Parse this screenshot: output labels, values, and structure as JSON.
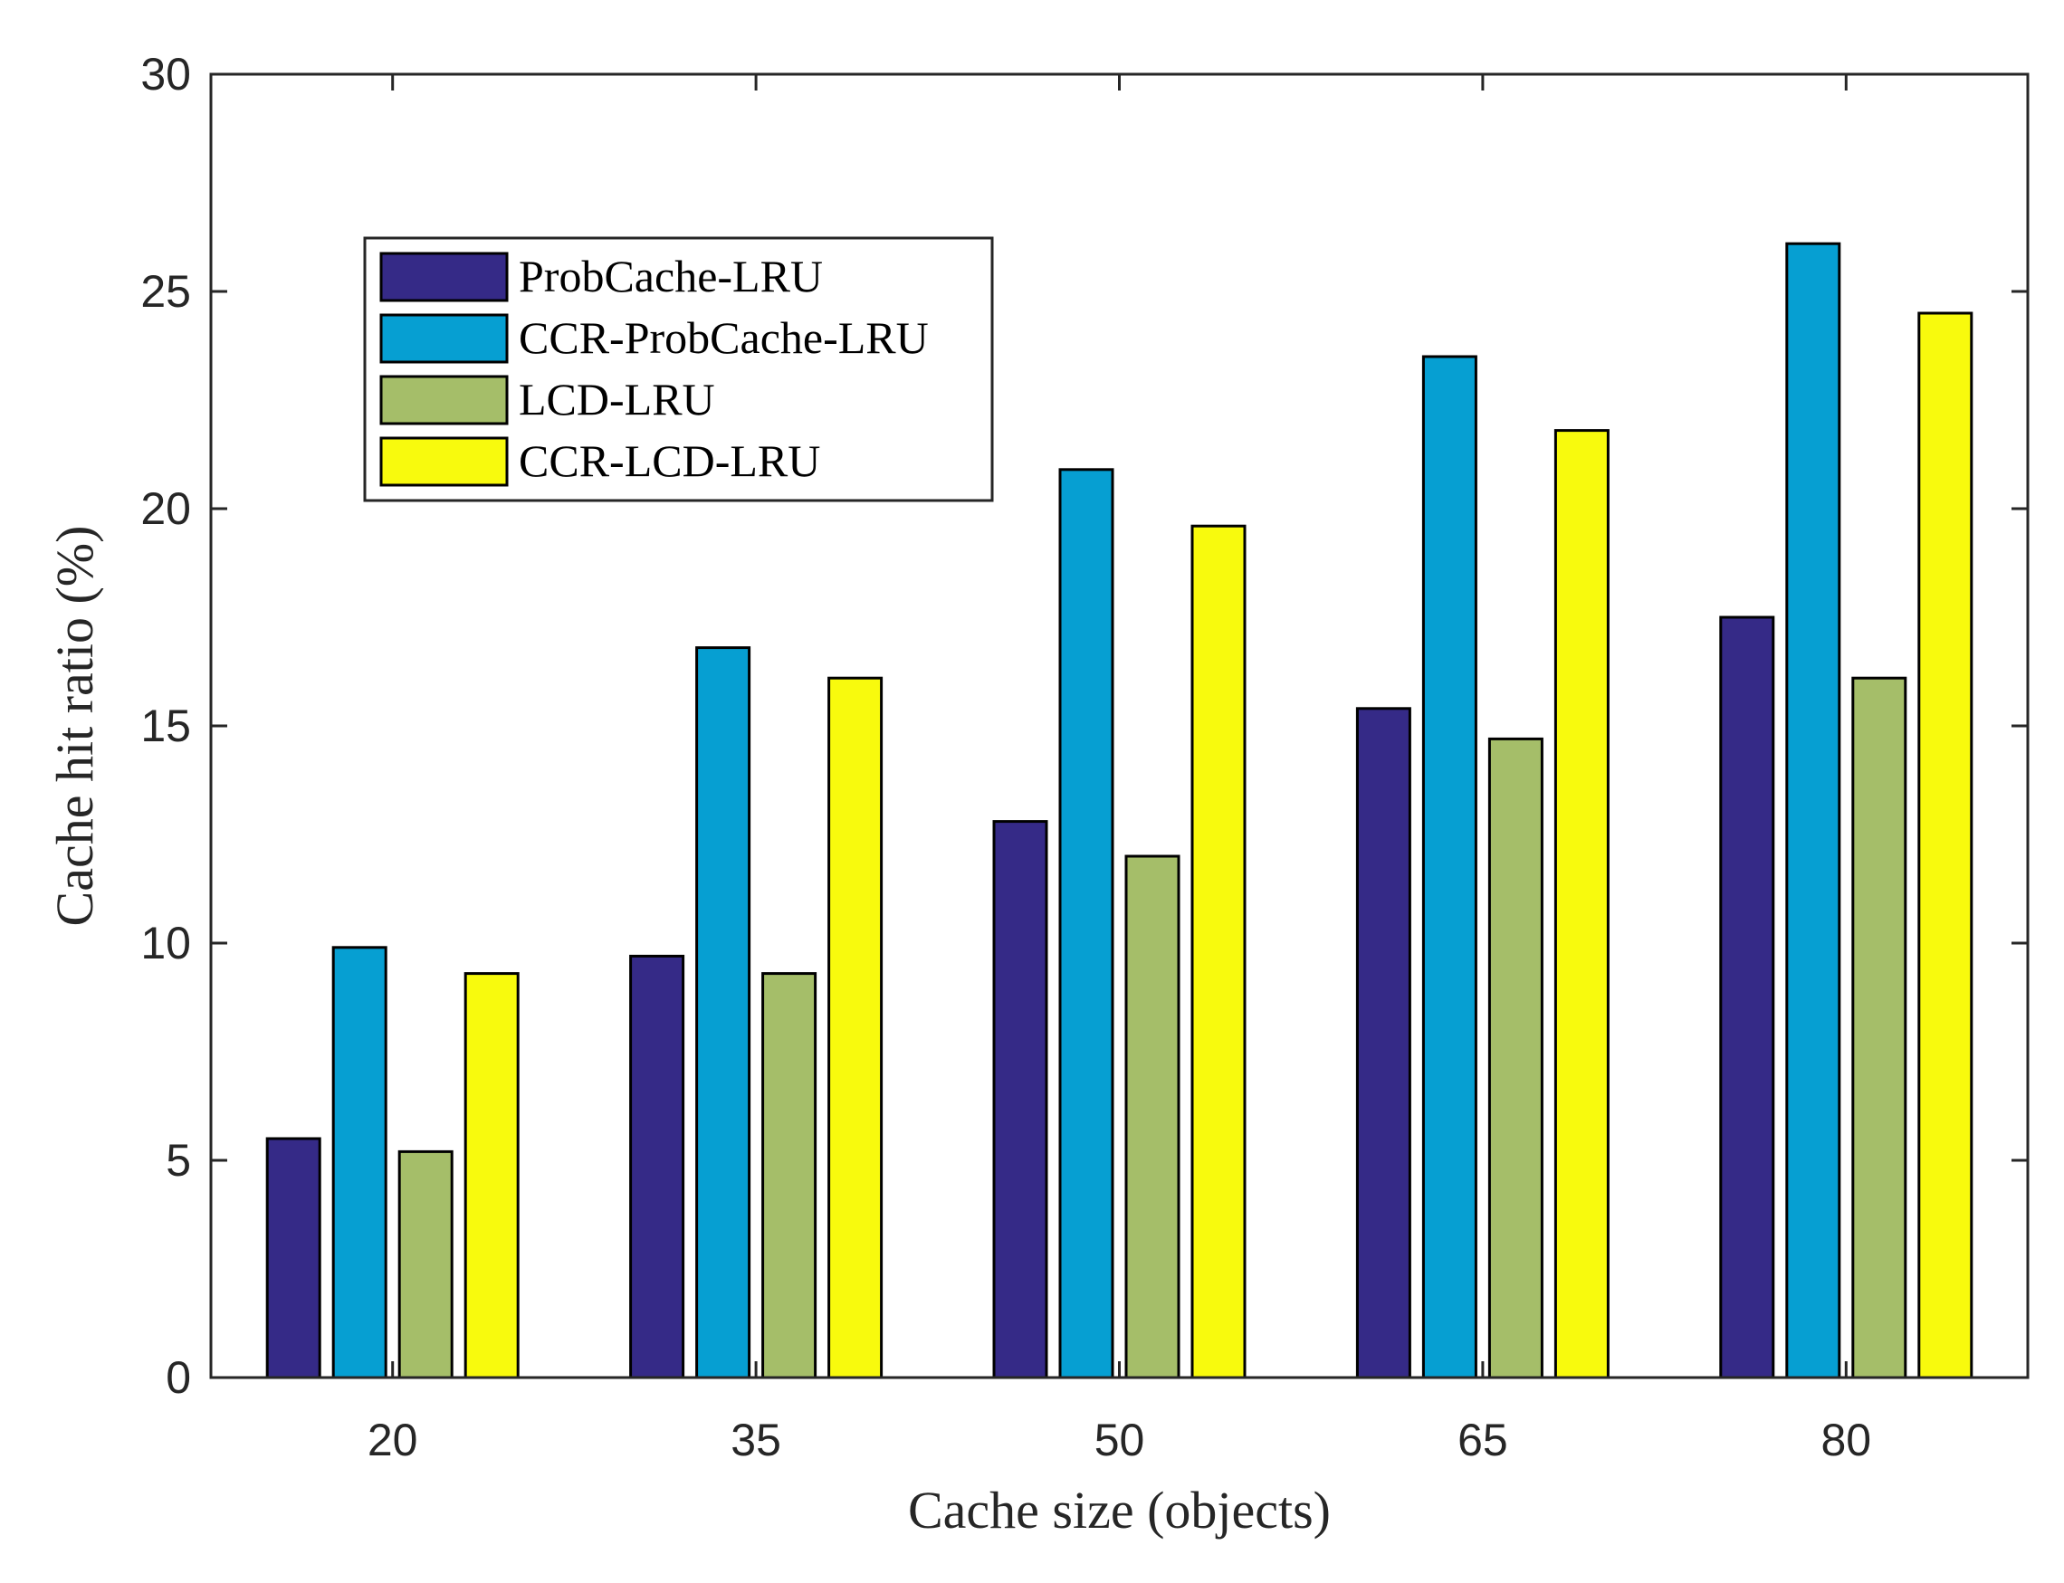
{
  "chart_data": {
    "type": "bar",
    "title": "",
    "xlabel": "Cache size (objects)",
    "ylabel": "Cache hit ratio (%)",
    "categories": [
      "20",
      "35",
      "50",
      "65",
      "80"
    ],
    "ylim": [
      0,
      30
    ],
    "yticks": [
      "0",
      "5",
      "10",
      "15",
      "20",
      "25",
      "30"
    ],
    "grid": false,
    "legend_position": "upper-left",
    "series": [
      {
        "name": "ProbCache-LRU",
        "color": "#352a87",
        "values": [
          5.5,
          9.7,
          12.8,
          15.4,
          17.5
        ]
      },
      {
        "name": "CCR-ProbCache-LRU",
        "color": "#069fd2",
        "values": [
          9.9,
          16.8,
          20.9,
          23.5,
          26.1
        ]
      },
      {
        "name": "LCD-LRU",
        "color": "#a5be69",
        "values": [
          5.2,
          9.3,
          12.0,
          14.7,
          16.1
        ]
      },
      {
        "name": "CCR-LCD-LRU",
        "color": "#f8fa0d",
        "values": [
          9.3,
          16.1,
          19.6,
          21.8,
          24.5
        ]
      }
    ]
  }
}
